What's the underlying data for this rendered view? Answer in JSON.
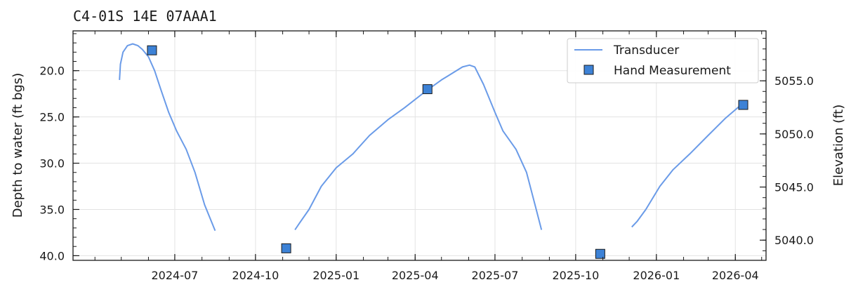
{
  "chart_data": {
    "type": "line",
    "title": "C4-01S 14E 07AAA1",
    "ylabel": "Depth to water (ft bgs)",
    "y2label": "Elevation (ft)",
    "ylim": [
      40.5,
      15.7
    ],
    "y_inverted": true,
    "yticks": [
      "20.0",
      "25.0",
      "30.0",
      "35.0",
      "40.0"
    ],
    "y2lim": [
      5038.1,
      5059.7
    ],
    "y2ticks": [
      "5040.0",
      "5045.0",
      "5050.0",
      "5055.0"
    ],
    "xlim": [
      "2024-03-07",
      "2026-05-06"
    ],
    "xticks": [
      "2024-07",
      "2024-10",
      "2025-01",
      "2025-04",
      "2025-07",
      "2025-10",
      "2026-01",
      "2026-04"
    ],
    "grid": true,
    "legend_position": "top-right",
    "series": [
      {
        "name": "Transducer",
        "color": "#6a9be8",
        "segments": [
          [
            [
              "2024-04-29",
              21.0
            ],
            [
              "2024-04-30",
              19.3
            ],
            [
              "2024-05-03",
              18.0
            ],
            [
              "2024-05-08",
              17.3
            ],
            [
              "2024-05-14",
              17.1
            ],
            [
              "2024-05-20",
              17.3
            ],
            [
              "2024-05-25",
              17.7
            ],
            [
              "2024-06-01",
              18.5
            ],
            [
              "2024-06-08",
              20.0
            ],
            [
              "2024-06-15",
              22.0
            ],
            [
              "2024-06-24",
              24.5
            ],
            [
              "2024-07-03",
              26.5
            ],
            [
              "2024-07-14",
              28.5
            ],
            [
              "2024-07-24",
              31.0
            ],
            [
              "2024-08-04",
              34.5
            ],
            [
              "2024-08-16",
              37.3
            ]
          ],
          [
            [
              "2024-11-15",
              37.2
            ],
            [
              "2024-11-20",
              36.5
            ],
            [
              "2024-12-01",
              35.0
            ],
            [
              "2024-12-15",
              32.5
            ],
            [
              "2025-01-01",
              30.5
            ],
            [
              "2025-01-20",
              29.0
            ],
            [
              "2025-02-08",
              27.0
            ],
            [
              "2025-03-01",
              25.3
            ],
            [
              "2025-03-20",
              24.0
            ],
            [
              "2025-04-12",
              22.3
            ],
            [
              "2025-05-01",
              21.0
            ],
            [
              "2025-05-25",
              19.6
            ],
            [
              "2025-06-02",
              19.4
            ],
            [
              "2025-06-08",
              19.6
            ],
            [
              "2025-06-18",
              21.5
            ],
            [
              "2025-07-01",
              24.5
            ],
            [
              "2025-07-10",
              26.5
            ],
            [
              "2025-07-25",
              28.5
            ],
            [
              "2025-08-06",
              31.0
            ],
            [
              "2025-08-17",
              35.0
            ],
            [
              "2025-08-23",
              37.2
            ]
          ],
          [
            [
              "2025-12-04",
              36.9
            ],
            [
              "2025-12-10",
              36.3
            ],
            [
              "2025-12-20",
              35.0
            ],
            [
              "2026-01-05",
              32.5
            ],
            [
              "2026-01-20",
              30.7
            ],
            [
              "2026-02-08",
              29.0
            ],
            [
              "2026-03-01",
              27.0
            ],
            [
              "2026-03-20",
              25.2
            ],
            [
              "2026-04-10",
              23.5
            ]
          ]
        ]
      },
      {
        "name": "Hand Measurement",
        "color": "#3d82d6",
        "points": [
          [
            "2024-06-05",
            17.8
          ],
          [
            "2024-11-05",
            39.2
          ],
          [
            "2025-04-15",
            22.0
          ],
          [
            "2025-10-29",
            39.8
          ],
          [
            "2026-04-10",
            23.7
          ]
        ]
      }
    ]
  }
}
